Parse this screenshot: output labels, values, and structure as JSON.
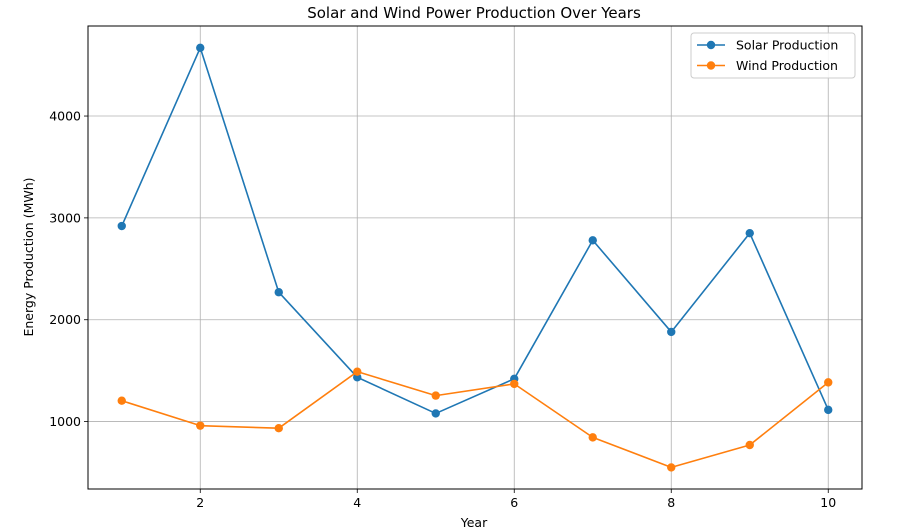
{
  "chart_data": {
    "type": "line",
    "title": "Solar and Wind Power Production Over Years",
    "xlabel": "Year",
    "ylabel": "Energy Production (MWh)",
    "x": [
      1,
      2,
      3,
      4,
      5,
      6,
      7,
      8,
      9,
      10
    ],
    "xlim": [
      0.57,
      10.43
    ],
    "ylim": [
      338,
      4884
    ],
    "xticks": [
      2,
      4,
      6,
      8,
      10
    ],
    "yticks": [
      1000,
      2000,
      3000,
      4000
    ],
    "grid": true,
    "legend_position": "top-right",
    "series": [
      {
        "name": "Solar Production",
        "color": "#1f77b4",
        "values": [
          2920,
          4670,
          2270,
          1435,
          1080,
          1420,
          2780,
          1880,
          2850,
          1115
        ]
      },
      {
        "name": "Wind Production",
        "color": "#ff7f0e",
        "values": [
          1205,
          960,
          935,
          1490,
          1255,
          1370,
          845,
          550,
          770,
          1385
        ]
      }
    ]
  }
}
